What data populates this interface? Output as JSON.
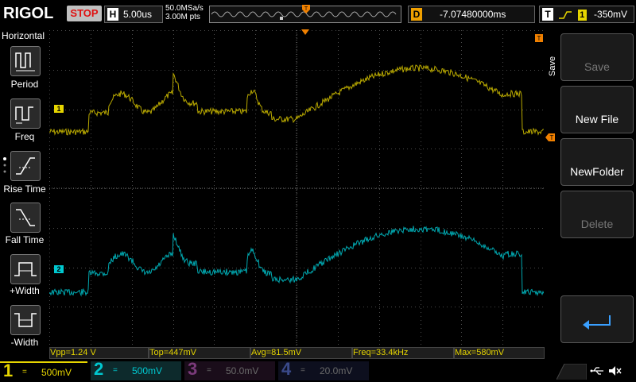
{
  "top": {
    "logo": "RIGOL",
    "run_state": "STOP",
    "timebase_label": "H",
    "timebase": "5.00us",
    "sample_rate": "50.0MSa/s",
    "memory_depth": "3.00M pts",
    "delay_label": "D",
    "delay": "-7.07480000ms",
    "trigger_label": "T",
    "trigger_source": "1",
    "trigger_level": "-350mV"
  },
  "left_panel": {
    "title": "Horizontal",
    "items": [
      {
        "label": "Period",
        "icon": "period-icon"
      },
      {
        "label": "Freq",
        "icon": "freq-icon"
      },
      {
        "label": "Rise Time",
        "icon": "rise-time-icon"
      },
      {
        "label": "Fall Time",
        "icon": "fall-time-icon"
      },
      {
        "label": "+Width",
        "icon": "pos-width-icon"
      },
      {
        "label": "-Width",
        "icon": "neg-width-icon"
      }
    ]
  },
  "right_menu": {
    "side_label": "Save",
    "items": [
      {
        "label": "Save",
        "enabled": false
      },
      {
        "label": "New File",
        "enabled": true
      },
      {
        "label": "NewFolder",
        "enabled": true
      },
      {
        "label": "Delete",
        "enabled": false
      }
    ],
    "back_icon": "return-arrow-icon"
  },
  "measurements": [
    {
      "text": "Vpp=1.24 V"
    },
    {
      "text": "Top=447mV"
    },
    {
      "text": "Avg=81.5mV"
    },
    {
      "text": "Freq=33.4kHz"
    },
    {
      "text": "Max=580mV"
    }
  ],
  "channels": [
    {
      "num": "1",
      "coupling": "=",
      "scale": "500mV",
      "color": "#e6d500",
      "active": true
    },
    {
      "num": "2",
      "coupling": "=",
      "scale": "500mV",
      "color": "#00c8d0",
      "active": true
    },
    {
      "num": "3",
      "coupling": "=",
      "scale": "50.0mV",
      "color": "#b030b0",
      "active": false
    },
    {
      "num": "4",
      "coupling": "=",
      "scale": "20.0mV",
      "color": "#2050e0",
      "active": false
    }
  ],
  "channel_markers": [
    "1",
    "2"
  ],
  "trace_colors": {
    "ch1": "#b8a800",
    "ch2": "#00a8b0"
  },
  "status_icons": [
    "usb-icon",
    "mute-icon"
  ]
}
